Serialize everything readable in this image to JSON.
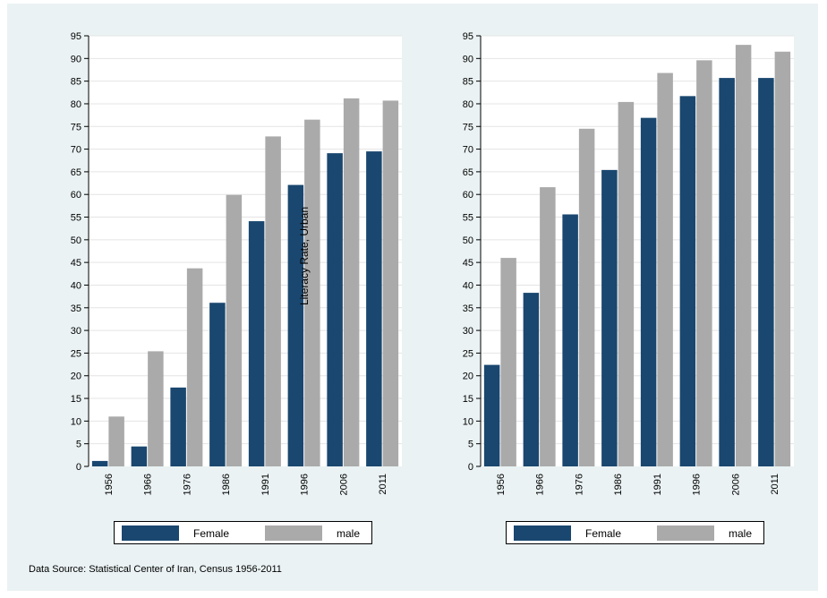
{
  "colors": {
    "background": "#eaf2f3",
    "plot_area": "#ffffff",
    "grid": "#e4e4e4",
    "female": "#1a476f",
    "male": "#aaaaaa"
  },
  "source_note": "Data Source: Statistical Center of Iran, Census 1956-2011",
  "chart_data": [
    {
      "type": "bar",
      "title": "",
      "ylabel": "Literacy Rate, Urban",
      "ylim": [
        0,
        95
      ],
      "yticks": [
        0,
        5,
        10,
        15,
        20,
        25,
        30,
        35,
        40,
        45,
        50,
        55,
        60,
        65,
        70,
        75,
        80,
        85,
        90,
        95
      ],
      "categories": [
        "1956",
        "1966",
        "1976",
        "1986",
        "1991",
        "1996",
        "2006",
        "2011"
      ],
      "series": [
        {
          "name": "Female",
          "values": [
            1.2,
            4.4,
            17.4,
            36.1,
            54.1,
            62.1,
            69.1,
            69.5
          ]
        },
        {
          "name": "male",
          "values": [
            11.0,
            25.4,
            43.7,
            59.9,
            72.8,
            76.5,
            81.2,
            80.7
          ]
        }
      ],
      "legend": {
        "placement": "bottom",
        "labels": [
          "Female",
          "male"
        ]
      },
      "grid": true
    },
    {
      "type": "bar",
      "title": "",
      "ylim": [
        0,
        95
      ],
      "yticks": [
        0,
        5,
        10,
        15,
        20,
        25,
        30,
        35,
        40,
        45,
        50,
        55,
        60,
        65,
        70,
        75,
        80,
        85,
        90,
        95
      ],
      "categories": [
        "1956",
        "1966",
        "1976",
        "1986",
        "1991",
        "1996",
        "2006",
        "2011"
      ],
      "series": [
        {
          "name": "Female",
          "values": [
            22.4,
            38.3,
            55.6,
            65.4,
            76.9,
            81.7,
            85.7,
            85.7
          ]
        },
        {
          "name": "male",
          "values": [
            46.0,
            61.6,
            74.5,
            80.4,
            86.8,
            89.6,
            93.0,
            91.5
          ]
        }
      ],
      "legend": {
        "placement": "bottom",
        "labels": [
          "Female",
          "male"
        ]
      },
      "grid": true
    }
  ]
}
